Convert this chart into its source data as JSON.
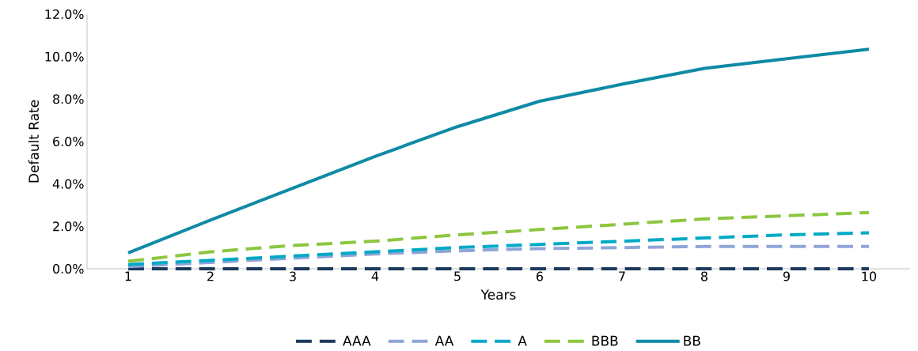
{
  "chart_data": {
    "type": "line",
    "xlabel": "Years",
    "ylabel": "Default Rate",
    "categories": [
      "1",
      "2",
      "3",
      "4",
      "5",
      "6",
      "7",
      "8",
      "9",
      "10"
    ],
    "series": [
      {
        "name": "AAA",
        "color": "#1b3a5c",
        "line_style": "dashed",
        "values": [
          0,
          0,
          0,
          0,
          0,
          0,
          0,
          0,
          0,
          0
        ]
      },
      {
        "name": "AA",
        "color": "#8fa5d6",
        "line_style": "dashed",
        "values": [
          0.1,
          0.3,
          0.5,
          0.7,
          0.85,
          0.95,
          1.0,
          1.05,
          1.05,
          1.05
        ]
      },
      {
        "name": "A",
        "color": "#00a9c6",
        "line_style": "dashed",
        "values": [
          0.2,
          0.4,
          0.6,
          0.8,
          1.0,
          1.15,
          1.3,
          1.45,
          1.6,
          1.7
        ]
      },
      {
        "name": "BBB",
        "color": "#8cc63f",
        "line_style": "dashed",
        "values": [
          0.35,
          0.8,
          1.1,
          1.3,
          1.6,
          1.85,
          2.1,
          2.35,
          2.5,
          2.65
        ]
      },
      {
        "name": "BB",
        "color": "#0f8aa5",
        "line_style": "solid",
        "values": [
          0.75,
          2.3,
          3.8,
          5.3,
          6.7,
          7.9,
          8.7,
          9.45,
          9.9,
          10.35
        ]
      }
    ],
    "ylim": [
      0,
      12
    ],
    "yticks": [
      {
        "value": 0,
        "label": "0.0%"
      },
      {
        "value": 2,
        "label": "2.0%"
      },
      {
        "value": 4,
        "label": "4.0%"
      },
      {
        "value": 6,
        "label": "6.0%"
      },
      {
        "value": 8,
        "label": "8.0%"
      },
      {
        "value": 10,
        "label": "10.0%"
      },
      {
        "value": 12,
        "label": "12.0%"
      }
    ],
    "grid": false,
    "legend": "bottom",
    "marker": "none"
  }
}
